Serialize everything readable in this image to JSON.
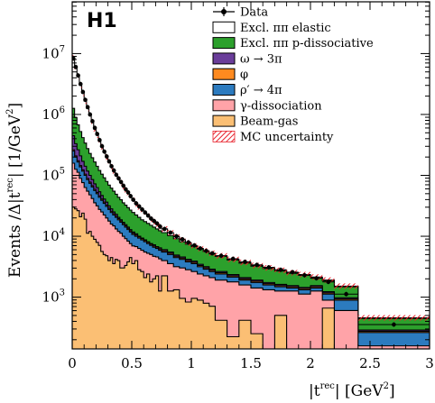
{
  "chart_data": {
    "type": "area",
    "badge": "H1",
    "xlabel_main": "|t",
    "xlabel_sup": "rec",
    "xlabel_unit": "| [GeV",
    "xlabel_unit_sup": "2",
    "xlabel_close": "]",
    "ylabel_main": "Events /Δ|t",
    "ylabel_sup": "rec",
    "ylabel_unit": "| [1/GeV",
    "ylabel_unit_sup": "2",
    "ylabel_close": "]",
    "xlim": [
      0,
      3
    ],
    "ylim_log10": [
      2.15,
      7.85
    ],
    "x_ticks": [
      {
        "value": 0,
        "label": "0"
      },
      {
        "value": 0.5,
        "label": "0.5"
      },
      {
        "value": 1,
        "label": "1"
      },
      {
        "value": 1.5,
        "label": "1.5"
      },
      {
        "value": 2,
        "label": "2"
      },
      {
        "value": 2.5,
        "label": "2.5"
      },
      {
        "value": 3,
        "label": "3"
      }
    ],
    "y_ticks": [
      {
        "exp": 3,
        "base": "10",
        "power": "3"
      },
      {
        "exp": 4,
        "base": "10",
        "power": "4"
      },
      {
        "exp": 5,
        "base": "10",
        "power": "5"
      },
      {
        "exp": 6,
        "base": "10",
        "power": "6"
      },
      {
        "exp": 7,
        "base": "10",
        "power": "7"
      }
    ],
    "bin_edges": [
      0,
      0.02,
      0.04,
      0.06,
      0.08,
      0.1,
      0.12,
      0.14,
      0.16,
      0.18,
      0.2,
      0.22,
      0.24,
      0.26,
      0.28,
      0.3,
      0.32,
      0.34,
      0.36,
      0.38,
      0.4,
      0.42,
      0.44,
      0.46,
      0.48,
      0.5,
      0.525,
      0.55,
      0.575,
      0.6,
      0.625,
      0.65,
      0.675,
      0.7,
      0.725,
      0.75,
      0.8,
      0.85,
      0.9,
      0.95,
      1.0,
      1.05,
      1.1,
      1.15,
      1.2,
      1.3,
      1.4,
      1.5,
      1.6,
      1.7,
      1.8,
      1.9,
      2.0,
      2.1,
      2.2,
      2.4,
      3.0
    ],
    "series_log10_cumulative": [
      {
        "name": "Beam-gas",
        "color": "#fbbf74",
        "values": [
          4.48,
          4.45,
          4.42,
          4.32,
          4.38,
          4.28,
          4.05,
          4.08,
          4.0,
          3.95,
          3.9,
          3.85,
          3.75,
          3.7,
          3.68,
          3.6,
          3.65,
          3.55,
          3.62,
          3.6,
          3.48,
          3.48,
          3.52,
          3.58,
          3.65,
          3.55,
          3.6,
          3.45,
          3.42,
          3.32,
          3.38,
          3.25,
          3.3,
          3.35,
          3.1,
          3.35,
          3.1,
          3.12,
          2.98,
          2.92,
          2.98,
          2.95,
          2.9,
          2.85,
          2.62,
          2.35,
          2.62,
          2.4,
          2.15,
          2.7,
          2.15,
          2.15,
          2.15,
          2.82,
          2.15,
          2.15
        ]
      },
      {
        "name": "γ-dissociation",
        "color": "#ffa3a8",
        "values": [
          5.2,
          5.1,
          5.05,
          4.95,
          4.88,
          4.8,
          4.74,
          4.68,
          4.62,
          4.55,
          4.5,
          4.44,
          4.4,
          4.35,
          4.3,
          4.25,
          4.2,
          4.17,
          4.12,
          4.08,
          4.05,
          4.0,
          3.96,
          3.92,
          3.88,
          3.84,
          3.83,
          3.8,
          3.77,
          3.74,
          3.72,
          3.7,
          3.67,
          3.66,
          3.63,
          3.6,
          3.55,
          3.5,
          3.48,
          3.45,
          3.42,
          3.38,
          3.35,
          3.32,
          3.28,
          3.25,
          3.2,
          3.15,
          3.12,
          3.1,
          3.1,
          3.05,
          3.1,
          2.95,
          2.78,
          2.2
        ]
      },
      {
        "name": "ρ′ → 4π",
        "color": "#2c7bbf",
        "values": [
          5.4,
          5.3,
          5.22,
          5.14,
          5.07,
          5.0,
          4.93,
          4.87,
          4.81,
          4.75,
          4.7,
          4.64,
          4.59,
          4.54,
          4.49,
          4.44,
          4.39,
          4.35,
          4.31,
          4.27,
          4.23,
          4.19,
          4.15,
          4.11,
          4.07,
          4.03,
          4.0,
          3.97,
          3.94,
          3.91,
          3.88,
          3.85,
          3.82,
          3.8,
          3.77,
          3.74,
          3.7,
          3.65,
          3.62,
          3.58,
          3.55,
          3.5,
          3.46,
          3.42,
          3.38,
          3.33,
          3.28,
          3.24,
          3.2,
          3.17,
          3.15,
          3.12,
          3.15,
          3.05,
          2.95,
          2.42
        ]
      },
      {
        "name": "φ",
        "color": "#ff8a1f",
        "values": [
          5.42,
          5.32,
          5.24,
          5.16,
          5.09,
          5.02,
          4.95,
          4.89,
          4.83,
          4.77,
          4.72,
          4.66,
          4.61,
          4.56,
          4.51,
          4.46,
          4.41,
          4.37,
          4.33,
          4.29,
          4.25,
          4.21,
          4.17,
          4.13,
          4.09,
          4.05,
          4.02,
          3.99,
          3.96,
          3.93,
          3.9,
          3.87,
          3.84,
          3.82,
          3.79,
          3.76,
          3.72,
          3.67,
          3.64,
          3.6,
          3.57,
          3.52,
          3.48,
          3.44,
          3.4,
          3.35,
          3.3,
          3.26,
          3.22,
          3.19,
          3.17,
          3.14,
          3.17,
          3.07,
          2.97,
          2.44
        ]
      },
      {
        "name": "ω → 3π",
        "color": "#6a3d9a",
        "values": [
          5.65,
          5.52,
          5.42,
          5.32,
          5.23,
          5.15,
          5.07,
          5.0,
          4.93,
          4.86,
          4.8,
          4.73,
          4.67,
          4.61,
          4.56,
          4.5,
          4.45,
          4.4,
          4.36,
          4.31,
          4.27,
          4.23,
          4.19,
          4.15,
          4.11,
          4.07,
          4.04,
          4.0,
          3.97,
          3.94,
          3.91,
          3.88,
          3.86,
          3.83,
          3.81,
          3.78,
          3.74,
          3.69,
          3.66,
          3.62,
          3.59,
          3.54,
          3.5,
          3.46,
          3.42,
          3.37,
          3.32,
          3.28,
          3.24,
          3.21,
          3.19,
          3.16,
          3.19,
          3.09,
          2.99,
          2.46
        ]
      },
      {
        "name": "Excl. ππ p-dissociative",
        "color": "#2ca02c",
        "values": [
          6.1,
          5.95,
          5.83,
          5.72,
          5.62,
          5.53,
          5.44,
          5.36,
          5.29,
          5.22,
          5.15,
          5.08,
          5.02,
          4.96,
          4.9,
          4.84,
          4.79,
          4.74,
          4.69,
          4.64,
          4.6,
          4.55,
          4.51,
          4.47,
          4.43,
          4.39,
          4.35,
          4.31,
          4.27,
          4.24,
          4.21,
          4.18,
          4.15,
          4.12,
          4.09,
          4.06,
          4.01,
          3.96,
          3.91,
          3.87,
          3.83,
          3.79,
          3.75,
          3.71,
          3.67,
          3.61,
          3.56,
          3.51,
          3.47,
          3.43,
          3.39,
          3.36,
          3.32,
          3.27,
          3.17,
          2.65
        ]
      },
      {
        "name": "Excl. ππ elastic",
        "color": "#ffffff",
        "values": [
          6.93,
          6.76,
          6.62,
          6.48,
          6.35,
          6.22,
          6.1,
          5.98,
          5.87,
          5.76,
          5.66,
          5.56,
          5.47,
          5.38,
          5.3,
          5.22,
          5.14,
          5.07,
          5.0,
          4.94,
          4.88,
          4.82,
          4.76,
          4.71,
          4.65,
          4.59,
          4.53,
          4.48,
          4.43,
          4.38,
          4.33,
          4.28,
          4.24,
          4.2,
          4.16,
          4.12,
          4.06,
          3.99,
          3.94,
          3.89,
          3.84,
          3.8,
          3.76,
          3.72,
          3.68,
          3.62,
          3.57,
          3.52,
          3.48,
          3.44,
          3.4,
          3.37,
          3.33,
          3.28,
          3.18,
          2.66
        ]
      }
    ],
    "mc_uncertainty_log10_halfwidth": 0.045,
    "data_points": {
      "name": "Data",
      "x": [
        0.01,
        0.03,
        0.05,
        0.07,
        0.09,
        0.11,
        0.13,
        0.15,
        0.17,
        0.19,
        0.21,
        0.23,
        0.25,
        0.27,
        0.29,
        0.31,
        0.33,
        0.35,
        0.37,
        0.39,
        0.41,
        0.43,
        0.45,
        0.47,
        0.49,
        0.5125,
        0.5375,
        0.5625,
        0.5875,
        0.6125,
        0.6375,
        0.6625,
        0.6875,
        0.7125,
        0.7375,
        0.775,
        0.825,
        0.875,
        0.925,
        0.975,
        1.025,
        1.075,
        1.125,
        1.175,
        1.25,
        1.35,
        1.45,
        1.55,
        1.65,
        1.75,
        1.85,
        1.95,
        2.05,
        2.15,
        2.3,
        2.7
      ],
      "y_log10": [
        6.92,
        6.78,
        6.64,
        6.5,
        6.37,
        6.24,
        6.12,
        6.0,
        5.89,
        5.78,
        5.68,
        5.58,
        5.48,
        5.39,
        5.31,
        5.23,
        5.15,
        5.08,
        5.01,
        4.95,
        4.89,
        4.83,
        4.77,
        4.72,
        4.66,
        4.6,
        4.54,
        4.49,
        4.44,
        4.39,
        4.34,
        4.29,
        4.25,
        4.21,
        4.16,
        4.12,
        4.06,
        4.0,
        3.95,
        3.9,
        3.85,
        3.8,
        3.76,
        3.72,
        3.68,
        3.63,
        3.58,
        3.53,
        3.49,
        3.45,
        3.41,
        3.36,
        3.31,
        3.25,
        3.05,
        2.55
      ]
    },
    "legend": [
      {
        "label": "Data",
        "kind": "data"
      },
      {
        "label": "Excl. ππ elastic",
        "kind": "box",
        "color": "#ffffff"
      },
      {
        "label": "Excl. ππ p-dissociative",
        "kind": "box",
        "color": "#2ca02c"
      },
      {
        "label": "ω → 3π",
        "kind": "box",
        "color": "#6a3d9a"
      },
      {
        "label": "φ",
        "kind": "box",
        "color": "#ff8a1f"
      },
      {
        "label": "ρ′ → 4π",
        "kind": "box",
        "color": "#2c7bbf"
      },
      {
        "label": "γ-dissociation",
        "kind": "box",
        "color": "#ffa3a8"
      },
      {
        "label": "Beam-gas",
        "kind": "box",
        "color": "#fbbf74"
      },
      {
        "label": "MC uncertainty",
        "kind": "hatch",
        "color": "#e8202a"
      }
    ]
  }
}
